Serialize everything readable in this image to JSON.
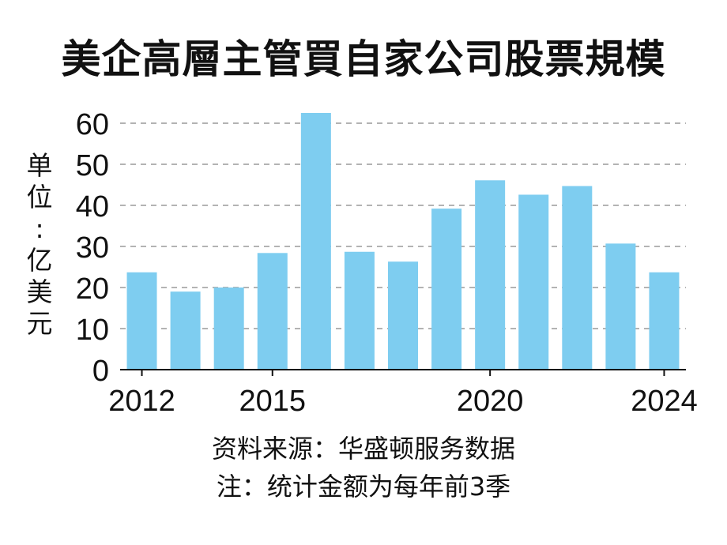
{
  "title": "美企高層主管買自家公司股票規模",
  "unit_label": "单位:亿美元",
  "source": "资料来源：华盛顿服务数据",
  "note": "注：统计金额为每年前3季",
  "colors": {
    "bar": "#7ecdf0",
    "grid": "#9a9a9a",
    "axis": "#111111"
  },
  "chart_data": {
    "type": "bar",
    "title": "美企高層主管買自家公司股票規模",
    "xlabel": "",
    "ylabel": "单位:亿美元",
    "categories": [
      "2012",
      "2013",
      "2014",
      "2015",
      "2016",
      "2017",
      "2018",
      "2019",
      "2020",
      "2021",
      "2022",
      "2023",
      "2024"
    ],
    "values": [
      23.7,
      19.0,
      20.0,
      28.4,
      62.5,
      28.7,
      26.3,
      39.2,
      46.1,
      42.6,
      44.7,
      30.7,
      23.7
    ],
    "x_tick_labels": [
      "2012",
      "2015",
      "2020",
      "2024"
    ],
    "y_ticks": [
      0,
      10,
      20,
      30,
      40,
      50,
      60
    ],
    "ylim": [
      0,
      62.5
    ],
    "grid": "horizontal dashed",
    "legend": "none"
  }
}
